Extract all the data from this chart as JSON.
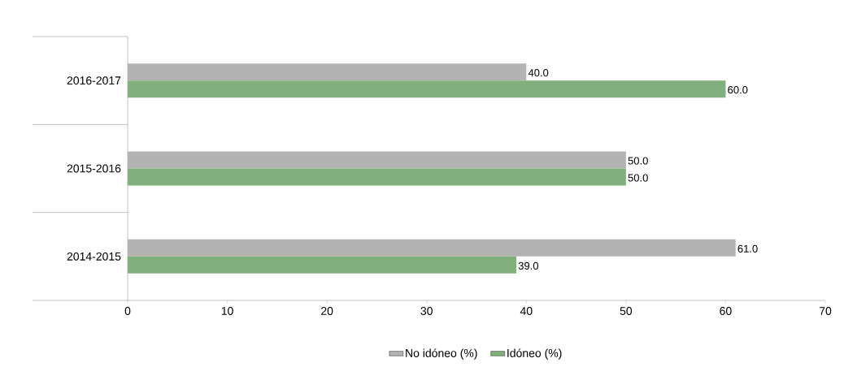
{
  "chart_data": {
    "type": "bar",
    "orientation": "horizontal",
    "categories": [
      "2016-2017",
      "2015-2016",
      "2014-2015"
    ],
    "series": [
      {
        "name": "No idóneo (%)",
        "color": "#b3b3b3",
        "values": [
          40,
          50,
          61
        ],
        "value_labels": [
          "40.0",
          "50.0",
          "61.0"
        ]
      },
      {
        "name": "Idóneo (%)",
        "color": "#82b07c",
        "values": [
          60,
          50,
          39
        ],
        "value_labels": [
          "60.0",
          "50.0",
          "39.0"
        ]
      }
    ],
    "xlim": [
      0,
      70
    ],
    "xticks": [
      0,
      10,
      20,
      30,
      40,
      50,
      60,
      70
    ],
    "grid": false,
    "legend": "bottom"
  }
}
